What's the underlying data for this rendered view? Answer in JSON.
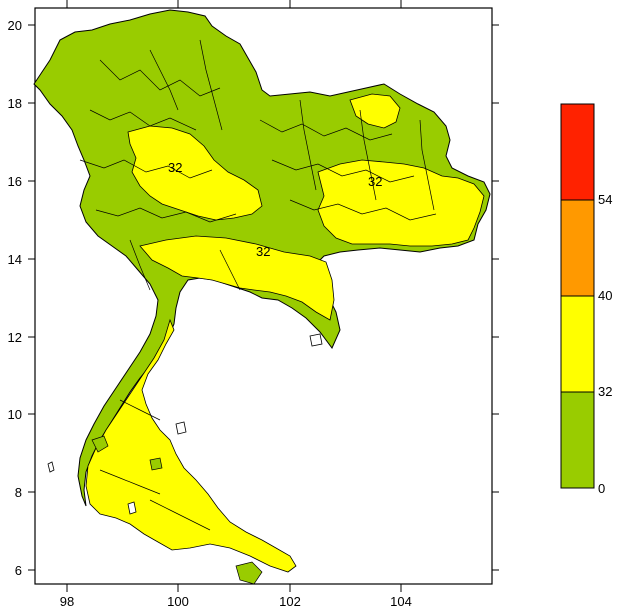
{
  "map": {
    "x_ticks": [
      "98",
      "100",
      "102",
      "104"
    ],
    "y_ticks": [
      "20",
      "18",
      "16",
      "14",
      "12",
      "10",
      "8",
      "6"
    ],
    "region_colors": {
      "low": "#99cc00",
      "mid": "#ffff00"
    },
    "inline_contour_labels": [
      "32",
      "32",
      "32"
    ]
  },
  "legend": {
    "bins": [
      {
        "from": 0,
        "to": 32,
        "color": "#99cc00"
      },
      {
        "from": 32,
        "to": 40,
        "color": "#ffff00"
      },
      {
        "from": 40,
        "to": 54,
        "color": "#ff9900"
      },
      {
        "from": 54,
        "to": null,
        "color": "#ff2200"
      }
    ],
    "labels": [
      "54",
      "40",
      "32",
      "0"
    ]
  }
}
